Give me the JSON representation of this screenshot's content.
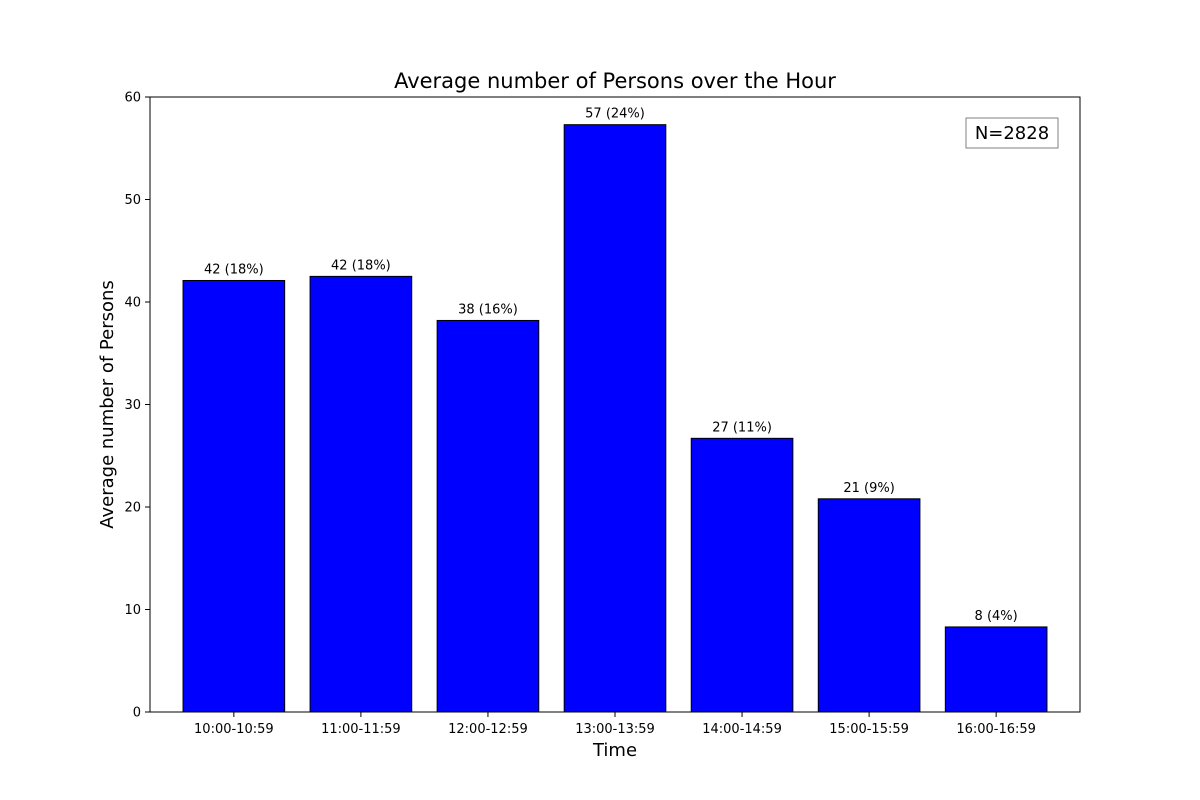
{
  "chart_data": {
    "type": "bar",
    "title": "Average number of Persons over the Hour",
    "xlabel": "Time",
    "ylabel": "Average number of Persons",
    "categories": [
      "10:00-10:59",
      "11:00-11:59",
      "12:00-12:59",
      "13:00-13:59",
      "14:00-14:59",
      "15:00-15:59",
      "16:00-16:59"
    ],
    "values": [
      42.1,
      42.5,
      38.2,
      57.3,
      26.7,
      20.8,
      8.3
    ],
    "data_labels": [
      "42 (18%)",
      "42 (18%)",
      "38 (16%)",
      "57 (24%)",
      "27 (11%)",
      "21 (9%)",
      "8 (4%)"
    ],
    "ylim": [
      0,
      60
    ],
    "yticks": [
      0,
      10,
      20,
      30,
      40,
      50,
      60
    ],
    "annotation": "N=2828",
    "annotation_placement": "top-right",
    "bar_color": "#0000ff",
    "bar_edge_color": "#000000",
    "grid": false,
    "legend": false
  }
}
